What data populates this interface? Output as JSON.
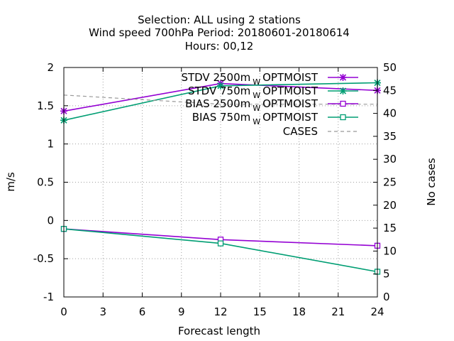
{
  "chart_data": {
    "type": "line",
    "title_lines": [
      "Selection: ALL using     2 stations",
      "Wind speed 700hPa   Period: 20180601-20180614",
      "Hours:  00,12"
    ],
    "xlabel": "Forecast length",
    "ylabel": "m/s",
    "y2label": "No cases",
    "xlim": [
      0,
      24
    ],
    "ylim": [
      -1,
      2
    ],
    "y2lim": [
      0,
      50
    ],
    "xticks": [
      0,
      3,
      6,
      9,
      12,
      15,
      18,
      21,
      24
    ],
    "yticks": [
      "-1",
      "-0.5",
      "0",
      "0.5",
      "1",
      "1.5",
      "2"
    ],
    "y2ticks": [
      "0",
      "5",
      "10",
      "15",
      "20",
      "25",
      "30",
      "35",
      "40",
      "45",
      "50"
    ],
    "grid": true,
    "legend_position": "top-right",
    "series": [
      {
        "name": "STDV 2500m",
        "sub": "W",
        "suffix": "OPTMOIST",
        "color": "#9400d3",
        "marker": "star",
        "axis": "y",
        "x": [
          0,
          12,
          24
        ],
        "y": [
          1.43,
          1.79,
          1.7
        ]
      },
      {
        "name": "STDV 750m",
        "sub": "W",
        "suffix": "OPTMOIST",
        "color": "#009e73",
        "marker": "star",
        "axis": "y",
        "x": [
          0,
          12,
          24
        ],
        "y": [
          1.31,
          1.76,
          1.8
        ]
      },
      {
        "name": "BIAS 2500m",
        "sub": "W",
        "suffix": "OPTMOIST",
        "color": "#9400d3",
        "marker": "square",
        "axis": "y",
        "x": [
          0,
          12,
          24
        ],
        "y": [
          -0.11,
          -0.25,
          -0.33
        ]
      },
      {
        "name": "BIAS 750m",
        "sub": "W",
        "suffix": "OPTMOIST",
        "color": "#009e73",
        "marker": "square",
        "axis": "y",
        "x": [
          0,
          12,
          24
        ],
        "y": [
          -0.11,
          -0.3,
          -0.67
        ]
      },
      {
        "name": "CASES",
        "sub": "",
        "suffix": "",
        "color": "#999999",
        "marker": "none",
        "dash": true,
        "axis": "y2",
        "x": [
          0,
          12,
          24
        ],
        "y": [
          44,
          42,
          42
        ]
      }
    ]
  }
}
